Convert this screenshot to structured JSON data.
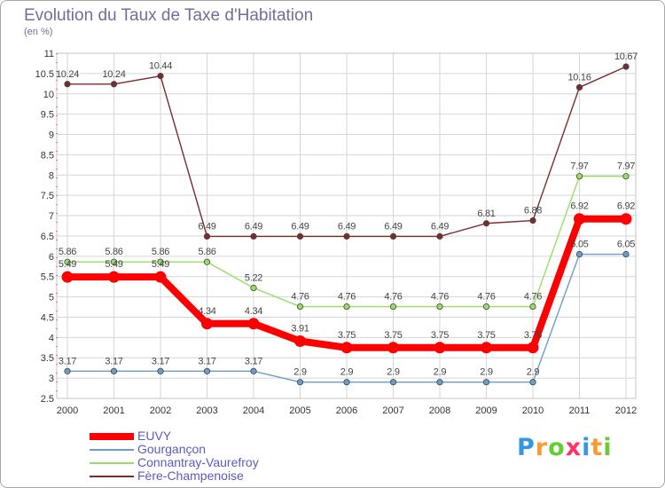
{
  "chart_data": {
    "type": "line",
    "title": "Evolution du Taux de Taxe d'Habitation",
    "subtitle": "(en %)",
    "x": [
      "2000",
      "2001",
      "2002",
      "2003",
      "2004",
      "2005",
      "2006",
      "2007",
      "2008",
      "2009",
      "2010",
      "2011",
      "2012"
    ],
    "ylim": [
      2.5,
      11
    ],
    "yticks": [
      "2.5",
      "3",
      "3.5",
      "4",
      "4.5",
      "5",
      "5.5",
      "6",
      "6.5",
      "7",
      "7.5",
      "8",
      "8.5",
      "9",
      "9.5",
      "10",
      "10.5",
      "11"
    ],
    "grid": true,
    "legend_position": "bottom-left",
    "series": [
      {
        "name": "EUVY",
        "color": "#ff0000",
        "values": [
          5.49,
          5.49,
          5.49,
          4.34,
          4.34,
          3.91,
          3.75,
          3.75,
          3.75,
          3.75,
          3.75,
          6.92,
          6.92
        ],
        "labels": [
          "5.49",
          "5.49",
          "5.49",
          "4.34",
          "4.34",
          "3.91",
          "3.75",
          "3.75",
          "3.75",
          "3.75",
          "3.75",
          "6.92",
          "6.92"
        ]
      },
      {
        "name": "Gourgançon",
        "color": "#6c9dc9",
        "values": [
          3.17,
          3.17,
          3.17,
          3.17,
          3.17,
          2.9,
          2.9,
          2.9,
          2.9,
          2.9,
          2.9,
          6.05,
          6.05
        ],
        "labels": [
          "3.17",
          "3.17",
          "3.17",
          "3.17",
          "3.17",
          "2.9",
          "2.9",
          "2.9",
          "2.9",
          "2.9",
          "2.9",
          "6.05",
          "6.05"
        ]
      },
      {
        "name": "Connantray-Vaurefroy",
        "color": "#99dd66",
        "values": [
          5.86,
          5.86,
          5.86,
          5.86,
          5.22,
          4.76,
          4.76,
          4.76,
          4.76,
          4.76,
          4.76,
          7.97,
          7.97
        ],
        "labels": [
          "5.86",
          "5.86",
          "5.86",
          "5.86",
          "5.22",
          "4.76",
          "4.76",
          "4.76",
          "4.76",
          "4.76",
          "4.76",
          "7.97",
          "7.97"
        ]
      },
      {
        "name": "Fère-Champenoise",
        "color": "#7b2b2b",
        "values": [
          10.24,
          10.24,
          10.44,
          6.49,
          6.49,
          6.49,
          6.49,
          6.49,
          6.49,
          6.81,
          6.88,
          10.16,
          10.67
        ],
        "labels": [
          "10.24",
          "10.24",
          "10.44",
          "6.49",
          "6.49",
          "6.49",
          "6.49",
          "6.49",
          "6.49",
          "6.81",
          "6.88",
          "10.16",
          "10.67"
        ]
      }
    ]
  },
  "logo": {
    "text": "Proxiti",
    "letters": [
      "P",
      "r",
      "o",
      "x",
      "i",
      "t",
      "i"
    ]
  }
}
